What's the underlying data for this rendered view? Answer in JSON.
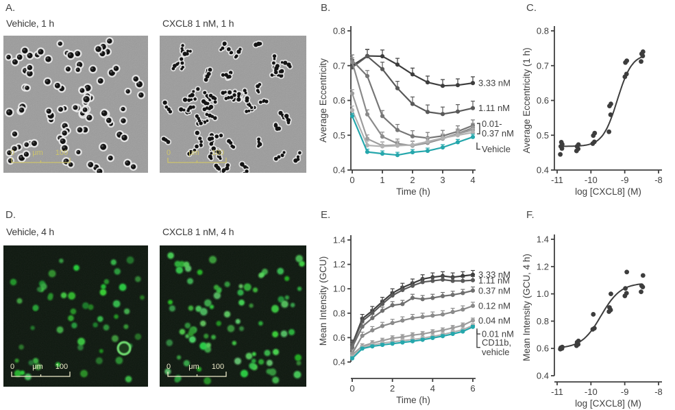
{
  "figure": {
    "background": "#ffffff",
    "text_color": "#3f3f3f",
    "accent_teal": "#26a7ac",
    "phase_scalebar_color": "#cdc46c",
    "fluor_scalebar_color": "#efeccb"
  },
  "panels": {
    "A": {
      "letter": "A.",
      "caption_left": "Vehicle, 1 h",
      "caption_right": "CXCL8 1 nM, 1 h",
      "scalebar": {
        "start": "0",
        "unit": "μm",
        "end": "100"
      }
    },
    "B": {
      "letter": "B."
    },
    "C": {
      "letter": "C."
    },
    "D": {
      "letter": "D.",
      "caption_left": "Vehicle, 4 h",
      "caption_right": "CXCL8 1 nM, 4 h",
      "scalebar": {
        "start": "0",
        "unit": "μm",
        "end": "100"
      }
    },
    "E": {
      "letter": "E."
    },
    "F": {
      "letter": "F."
    }
  },
  "chart_data": [
    {
      "id": "B",
      "type": "line",
      "xlabel": "Time (h)",
      "ylabel": "Average Eccentricity",
      "xlim": [
        0,
        4
      ],
      "ylim": [
        0.4,
        0.8
      ],
      "xticks": [
        0,
        1,
        2,
        3,
        4
      ],
      "yticks": [
        0.4,
        0.5,
        0.6,
        0.7,
        0.8
      ],
      "x": [
        0,
        0.5,
        1,
        1.5,
        2,
        2.5,
        3,
        3.5,
        4
      ],
      "series": [
        {
          "name": "3.33 nM",
          "color": "#3d3d3d",
          "err": 0.018,
          "values": [
            0.7,
            0.728,
            0.727,
            0.703,
            0.675,
            0.652,
            0.642,
            0.644,
            0.65
          ]
        },
        {
          "name": "1.11 nM",
          "color": "#595959",
          "err": 0.02,
          "values": [
            0.695,
            0.727,
            0.69,
            0.635,
            0.59,
            0.567,
            0.561,
            0.568,
            0.578
          ]
        },
        {
          "name": "0.37 nM",
          "color": "#767676",
          "err": 0.016,
          "values": [
            0.715,
            0.67,
            0.555,
            0.515,
            0.497,
            0.492,
            0.498,
            0.511,
            0.528
          ]
        },
        {
          "name": "0.12 nM",
          "color": "#8a8a8a",
          "err": 0.013,
          "values": [
            0.71,
            0.56,
            0.496,
            0.476,
            0.47,
            0.478,
            0.49,
            0.505,
            0.521
          ]
        },
        {
          "name": "0.04 nM",
          "color": "#9d9d9d",
          "err": 0.011,
          "values": [
            0.62,
            0.49,
            0.47,
            0.472,
            0.471,
            0.48,
            0.492,
            0.504,
            0.515
          ]
        },
        {
          "name": "0.01 nM",
          "color": "#b2b2b2",
          "err": 0.012,
          "values": [
            0.572,
            0.471,
            0.468,
            0.47,
            0.472,
            0.482,
            0.492,
            0.5,
            0.508
          ]
        },
        {
          "name": "Vehicle",
          "color": "#26a7ac",
          "err": 0.008,
          "values": [
            0.555,
            0.452,
            0.447,
            0.443,
            0.451,
            0.455,
            0.465,
            0.48,
            0.495
          ]
        }
      ],
      "right_labels": [
        {
          "lines": [
            "3.33 nM"
          ],
          "y": 0.65
        },
        {
          "lines": [
            "1.11 nM"
          ],
          "y": 0.578
        },
        {
          "lines": [
            "0.01-",
            "0.37 nM"
          ],
          "y": 0.519,
          "connector": "bracket",
          "y1": 0.534,
          "y2": 0.504
        },
        {
          "lines": [
            "Vehicle"
          ],
          "y": 0.46,
          "connector": "elbow",
          "from_y": 0.487
        }
      ]
    },
    {
      "id": "C",
      "type": "scatter",
      "xlabel": "log [CXCL8] (M)",
      "ylabel": "Average Eccentricity (1 h)",
      "xlim": [
        -11.1,
        -7.9
      ],
      "ylim": [
        0.4,
        0.8
      ],
      "xticks": [
        -11,
        -10,
        -9,
        -8
      ],
      "yticks": [
        0.4,
        0.5,
        0.6,
        0.7,
        0.8
      ],
      "point_color": "#3d3d3d",
      "groups": [
        {
          "x": -10.88,
          "y": [
            0.445,
            0.462,
            0.468,
            0.474,
            0.48
          ]
        },
        {
          "x": -10.4,
          "y": [
            0.455,
            0.461,
            0.468,
            0.473
          ]
        },
        {
          "x": -9.92,
          "y": [
            0.476,
            0.481,
            0.499,
            0.506
          ]
        },
        {
          "x": -9.44,
          "y": [
            0.51,
            0.559,
            0.584,
            0.59
          ]
        },
        {
          "x": -8.97,
          "y": [
            0.668,
            0.676,
            0.709,
            0.714
          ]
        },
        {
          "x": -8.49,
          "y": [
            0.712,
            0.728,
            0.734,
            0.74
          ]
        }
      ],
      "fit_curve": {
        "bottom": 0.468,
        "top": 0.734,
        "logec50": -9.22,
        "hill": 2.0
      }
    },
    {
      "id": "E",
      "type": "line",
      "xlabel": "Time (h)",
      "ylabel": "Mean Intensity (GCU)",
      "xlim": [
        0,
        6
      ],
      "ylim": [
        0.4,
        1.4
      ],
      "xticks": [
        0,
        2,
        4,
        6
      ],
      "yticks": [
        0.4,
        0.6,
        0.8,
        1.0,
        1.2,
        1.4
      ],
      "x": [
        0,
        0.5,
        1,
        1.5,
        2,
        2.5,
        3,
        3.5,
        4,
        4.5,
        5,
        5.5,
        6
      ],
      "series": [
        {
          "name": "3.33 nM",
          "color": "#3d3d3d",
          "err": 0.035,
          "values": [
            0.545,
            0.755,
            0.82,
            0.895,
            0.965,
            1.01,
            1.045,
            1.08,
            1.095,
            1.105,
            1.095,
            1.105,
            1.115
          ]
        },
        {
          "name": "1.11 nM",
          "color": "#595959",
          "err": 0.03,
          "values": [
            0.54,
            0.735,
            0.8,
            0.875,
            0.945,
            0.99,
            1.025,
            1.055,
            1.065,
            1.075,
            1.065,
            1.065,
            1.07
          ]
        },
        {
          "name": "0.37 nM",
          "color": "#6f6f6f",
          "err": 0.03,
          "values": [
            0.52,
            0.69,
            0.76,
            0.82,
            0.865,
            0.875,
            0.925,
            0.915,
            0.925,
            0.94,
            0.95,
            0.965,
            0.985
          ]
        },
        {
          "name": "0.12 nM",
          "color": "#8a8a8a",
          "err": 0.03,
          "values": [
            0.47,
            0.615,
            0.66,
            0.695,
            0.72,
            0.74,
            0.76,
            0.77,
            0.78,
            0.79,
            0.81,
            0.83,
            0.86
          ]
        },
        {
          "name": "0.04 nM",
          "color": "#9d9d9d",
          "err": 0.02,
          "values": [
            0.46,
            0.53,
            0.555,
            0.575,
            0.595,
            0.605,
            0.62,
            0.63,
            0.645,
            0.66,
            0.68,
            0.7,
            0.74
          ]
        },
        {
          "name": "0.01 nM",
          "color": "#b2b2b2",
          "err": 0.015,
          "values": [
            0.44,
            0.52,
            0.54,
            0.555,
            0.565,
            0.575,
            0.585,
            0.595,
            0.61,
            0.625,
            0.645,
            0.665,
            0.7
          ]
        },
        {
          "name": "CD11b, vehicle",
          "color": "#26a7ac",
          "err": 0.012,
          "values": [
            0.43,
            0.51,
            0.528,
            0.54,
            0.55,
            0.56,
            0.57,
            0.582,
            0.597,
            0.612,
            0.63,
            0.65,
            0.688
          ]
        }
      ],
      "right_labels": [
        {
          "lines": [
            "3.33 nM"
          ],
          "y": 1.115
        },
        {
          "lines": [
            "1.11 nM"
          ],
          "y": 1.068
        },
        {
          "lines": [
            "0.37 nM"
          ],
          "y": 0.985
        },
        {
          "lines": [
            "0.12 nM"
          ],
          "y": 0.86
        },
        {
          "lines": [
            "0.04 nM"
          ],
          "y": 0.74
        },
        {
          "lines": [
            "0.01 nM"
          ],
          "y": 0.63,
          "connector": "elbow",
          "from_y": 0.697
        },
        {
          "lines": [
            "CD11b,",
            "vehicle"
          ],
          "y": 0.52,
          "connector": "elbow",
          "from_y": 0.683
        }
      ]
    },
    {
      "id": "F",
      "type": "scatter",
      "xlabel": "log [CXCL8] (M)",
      "ylabel": "Mean Intensity (GCU, 4 h)",
      "xlim": [
        -11.1,
        -7.9
      ],
      "ylim": [
        0.4,
        1.4
      ],
      "xticks": [
        -11,
        -10,
        -9,
        -8
      ],
      "yticks": [
        0.4,
        0.6,
        0.8,
        1.0,
        1.2,
        1.4
      ],
      "point_color": "#3d3d3d",
      "groups": [
        {
          "x": -10.88,
          "y": [
            0.595,
            0.6,
            0.605,
            0.61
          ]
        },
        {
          "x": -10.4,
          "y": [
            0.62,
            0.63,
            0.645,
            0.655
          ]
        },
        {
          "x": -9.92,
          "y": [
            0.74,
            0.748,
            0.85
          ]
        },
        {
          "x": -9.44,
          "y": [
            0.87,
            0.882,
            0.9,
            1.0
          ]
        },
        {
          "x": -8.97,
          "y": [
            0.985,
            1.005,
            1.04,
            1.16
          ]
        },
        {
          "x": -8.49,
          "y": [
            1.015,
            1.05,
            1.06,
            1.135
          ]
        }
      ],
      "fit_curve": {
        "bottom": 0.6,
        "top": 1.08,
        "logec50": -9.7,
        "hill": 1.5
      }
    }
  ]
}
